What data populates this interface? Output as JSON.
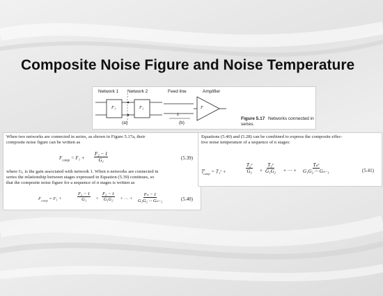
{
  "slide": {
    "title": "Composite Noise Figure and Noise Temperature"
  },
  "figure": {
    "labels": {
      "network1": "Network 1",
      "network2": "Network 2",
      "feedline": "Feed line",
      "amplifier": "Amplifier",
      "f1": "F₁",
      "f2": "F₂",
      "L": "L",
      "F": "F",
      "sub_a": "(a)",
      "sub_b": "(b)"
    },
    "caption_num": "Figure 5.17",
    "caption_text_1": "Networks connected in",
    "caption_text_2": "series."
  },
  "left": {
    "intro_1": "When two networks are connected in series, as shown in Figure 5.17a, their",
    "intro_2": "composite noise figure can be written as",
    "eq539": {
      "lhs": "F",
      "lhs_sub": "comp",
      "mid": " = F₁ + ",
      "num": "F₂ − 1",
      "den": "G₁",
      "tag": "(5.39)"
    },
    "mid_1": "where G₁ is the gain associated with network 1. When n networks are connected in",
    "mid_2": "series the relationship between stages expressed in Equation (5.39) continues, so",
    "mid_3": "that the composite noise figure for a sequence of n stages is written as",
    "eq540": {
      "lhs": "F",
      "lhs_sub": "comp",
      "eq": " = F₁ + ",
      "t1_num": "F₂ − 1",
      "t1_den": "G₁",
      "plus1": "+",
      "t2_num": "F₃ − 1",
      "t2_den": "G₁G₂",
      "dots": "+ ··· +",
      "t3_num": "Fₙ − 1",
      "t3_den": "G₁G₂ ··· Gₙ₋₁",
      "tag": "(5.40)"
    }
  },
  "right": {
    "intro_1": "Equations (5.40) and (5.28) can be combined to express the composite effec-",
    "intro_2": "tive noise temperature of a sequence of n stages:",
    "eq541": {
      "lhs": "T",
      "lhs_sup": "e",
      "lhs_sub": "comp",
      "eq": " = T₁ᵉ + ",
      "t1_num": "T₂ᵉ",
      "t1_den": "G₁",
      "plus1": "+",
      "t2_num": "T₃ᵉ",
      "t2_den": "G₁G₂",
      "dots": "+ ··· +",
      "t3_num": "Tₙᵉ",
      "t3_den": "G₁G₂ ··· Gₙ₋₁",
      "tag": "(5.41)"
    }
  }
}
